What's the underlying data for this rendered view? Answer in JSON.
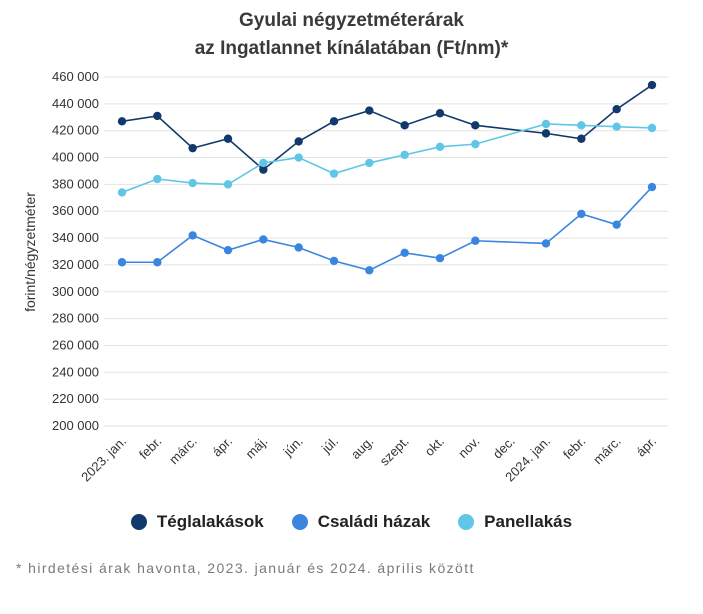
{
  "chart_data": {
    "type": "line",
    "title_line1": "Gyulai négyzetméterárak",
    "title_line2": "az Ingatlannet kínálatában (Ft/nm)*",
    "ylabel": "forint/négyzetméter",
    "ylim": [
      200000,
      460000
    ],
    "yticks": [
      200000,
      220000,
      240000,
      260000,
      280000,
      300000,
      320000,
      340000,
      360000,
      380000,
      400000,
      420000,
      440000,
      460000
    ],
    "ytick_labels": [
      "200 000",
      "220 000",
      "240 000",
      "260 000",
      "280 000",
      "300 000",
      "320 000",
      "340 000",
      "360 000",
      "380 000",
      "400 000",
      "420 000",
      "440 000",
      "460 000"
    ],
    "categories": [
      "2023. jan.",
      "febr.",
      "márc.",
      "ápr.",
      "máj.",
      "jún.",
      "júl.",
      "aug.",
      "szept.",
      "okt.",
      "nov.",
      "dec.",
      "2024. jan.",
      "febr.",
      "márc.",
      "ápr."
    ],
    "series": [
      {
        "name": "Téglalakások",
        "color": "#12396b",
        "values": [
          427000,
          431000,
          407000,
          414000,
          391000,
          412000,
          427000,
          435000,
          424000,
          433000,
          424000,
          null,
          418000,
          414000,
          436000,
          454000
        ]
      },
      {
        "name": "Családi házak",
        "color": "#3a85e0",
        "values": [
          322000,
          322000,
          342000,
          331000,
          339000,
          333000,
          323000,
          316000,
          329000,
          325000,
          338000,
          null,
          336000,
          358000,
          350000,
          378000
        ]
      },
      {
        "name": "Panellakás",
        "color": "#5fc6e8",
        "values": [
          374000,
          384000,
          381000,
          380000,
          396000,
          400000,
          388000,
          396000,
          402000,
          408000,
          410000,
          null,
          425000,
          424000,
          423000,
          422000
        ]
      }
    ],
    "legend": [
      "Téglalakások",
      "Családi házak",
      "Panellakás"
    ],
    "legend_position": "bottom",
    "grid": true
  },
  "footnote": "* hirdetési árak havonta, 2023. január és 2024. április között"
}
